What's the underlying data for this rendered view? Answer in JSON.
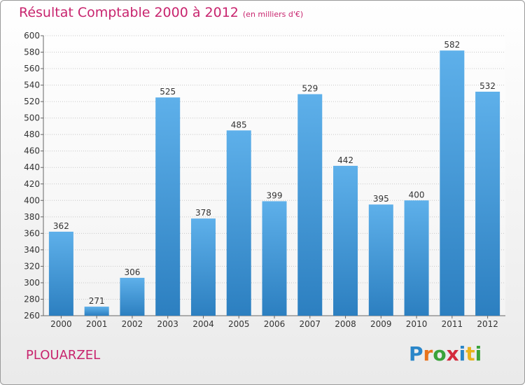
{
  "header": {
    "title": "Résultat Comptable 2000 à 2012",
    "subtitle": "(en milliers d'€)"
  },
  "footer": {
    "place": "PLOUARZEL"
  },
  "logo": {
    "letters": [
      "P",
      "r",
      "o",
      "x",
      "i",
      "t",
      "i"
    ],
    "colors": [
      "#2a86c9",
      "#e8731c",
      "#3aa33a",
      "#d42a3c",
      "#2a86c9",
      "#e8b31c",
      "#3aa33a"
    ]
  },
  "colors": {
    "bar_light": "#5eb0ea",
    "bar_dark": "#2c7fc0",
    "title": "#c8246e",
    "grid": "#c8c8c8",
    "axis_text": "#333333"
  },
  "chart_data": {
    "type": "bar",
    "categories": [
      "2000",
      "2001",
      "2002",
      "2003",
      "2004",
      "2005",
      "2006",
      "2007",
      "2008",
      "2009",
      "2010",
      "2011",
      "2012"
    ],
    "values": [
      362,
      271,
      306,
      525,
      378,
      485,
      399,
      529,
      442,
      395,
      400,
      582,
      532
    ],
    "ylim": [
      260,
      600
    ],
    "yticks": [
      260,
      280,
      300,
      320,
      340,
      360,
      380,
      400,
      420,
      440,
      460,
      480,
      500,
      520,
      540,
      560,
      580,
      600
    ],
    "grid": true
  }
}
